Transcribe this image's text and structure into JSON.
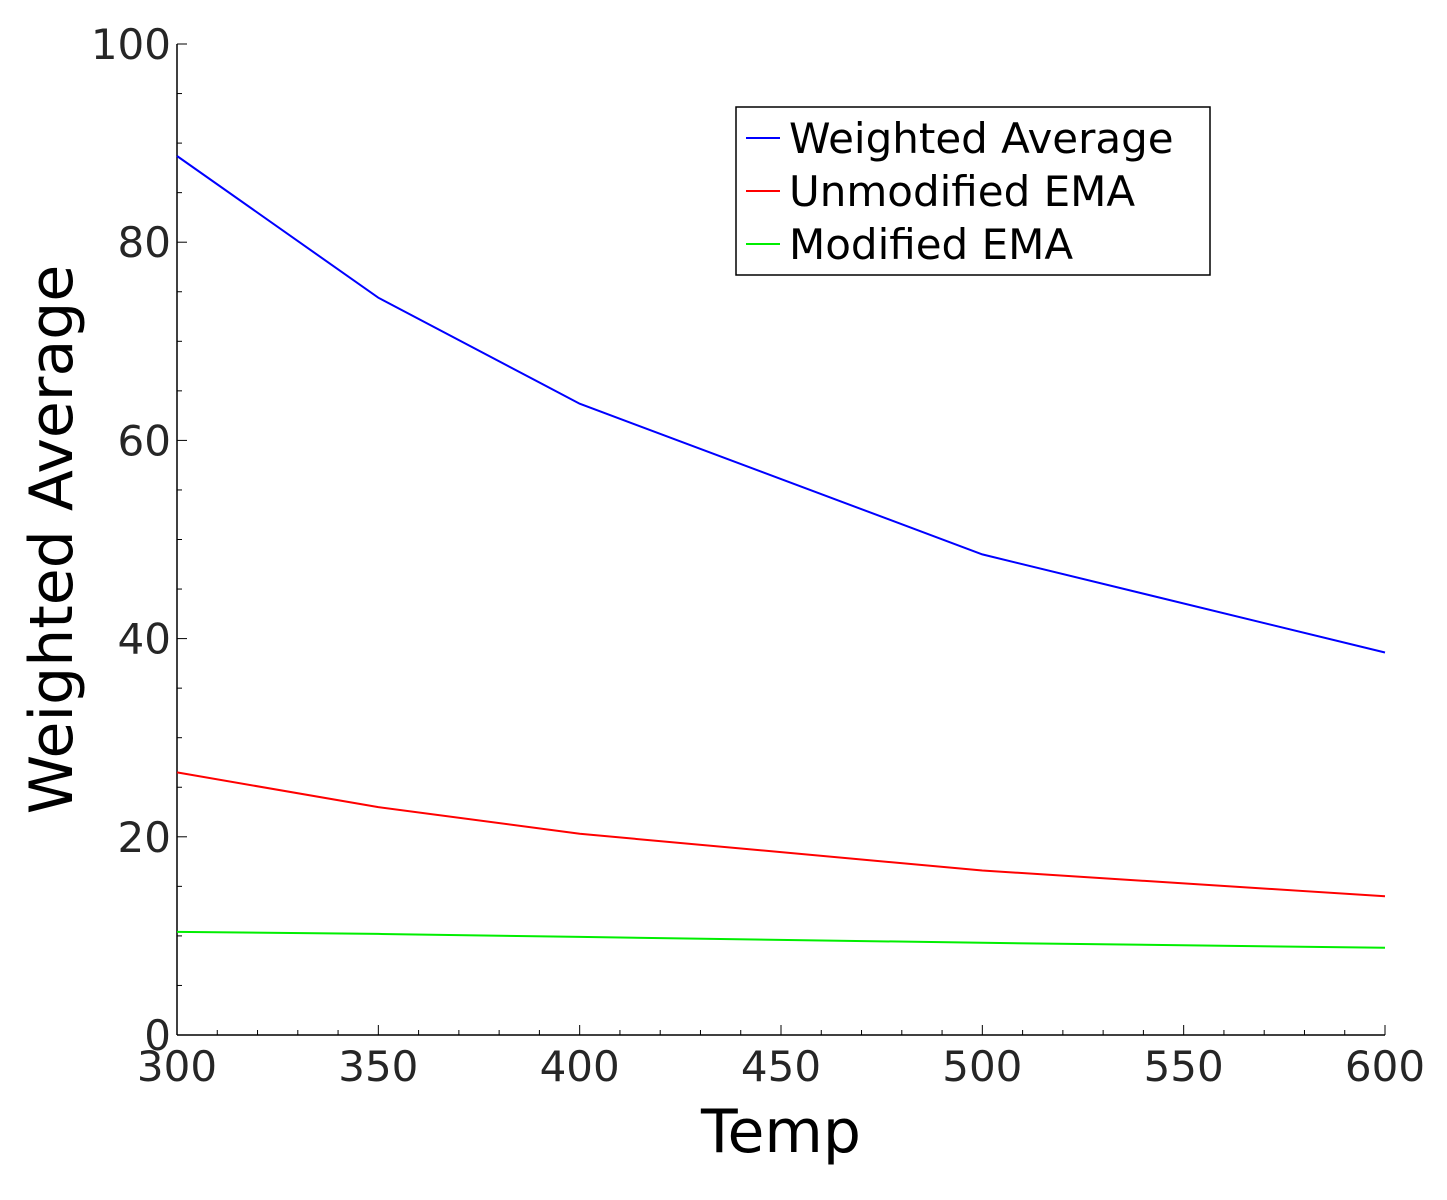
{
  "chart_data": {
    "type": "line",
    "title": "",
    "xlabel": "Temp",
    "ylabel": "Weighted Average",
    "x": [
      300,
      350,
      400,
      500,
      600
    ],
    "xlim": [
      300,
      600
    ],
    "ylim": [
      0,
      100
    ],
    "xticks": [
      300,
      350,
      400,
      450,
      500,
      550,
      600
    ],
    "xtick_labels": [
      "300",
      "350",
      "400",
      "450",
      "500",
      "550",
      "600"
    ],
    "yticks": [
      0,
      20,
      40,
      60,
      80,
      100
    ],
    "ytick_labels": [
      "0",
      "20",
      "40",
      "60",
      "80",
      "100"
    ],
    "grid": false,
    "legend_position": "top-right",
    "series": [
      {
        "name": "Weighted Average",
        "color": "#0000ff",
        "values": [
          88.7,
          74.4,
          63.7,
          48.5,
          38.6
        ]
      },
      {
        "name": "Unmodified EMA",
        "color": "#ff0000",
        "values": [
          26.5,
          23.0,
          20.3,
          16.6,
          14.0
        ]
      },
      {
        "name": "Modified EMA",
        "color": "#00ee00",
        "values": [
          10.4,
          10.2,
          9.9,
          9.3,
          8.8
        ]
      }
    ]
  }
}
